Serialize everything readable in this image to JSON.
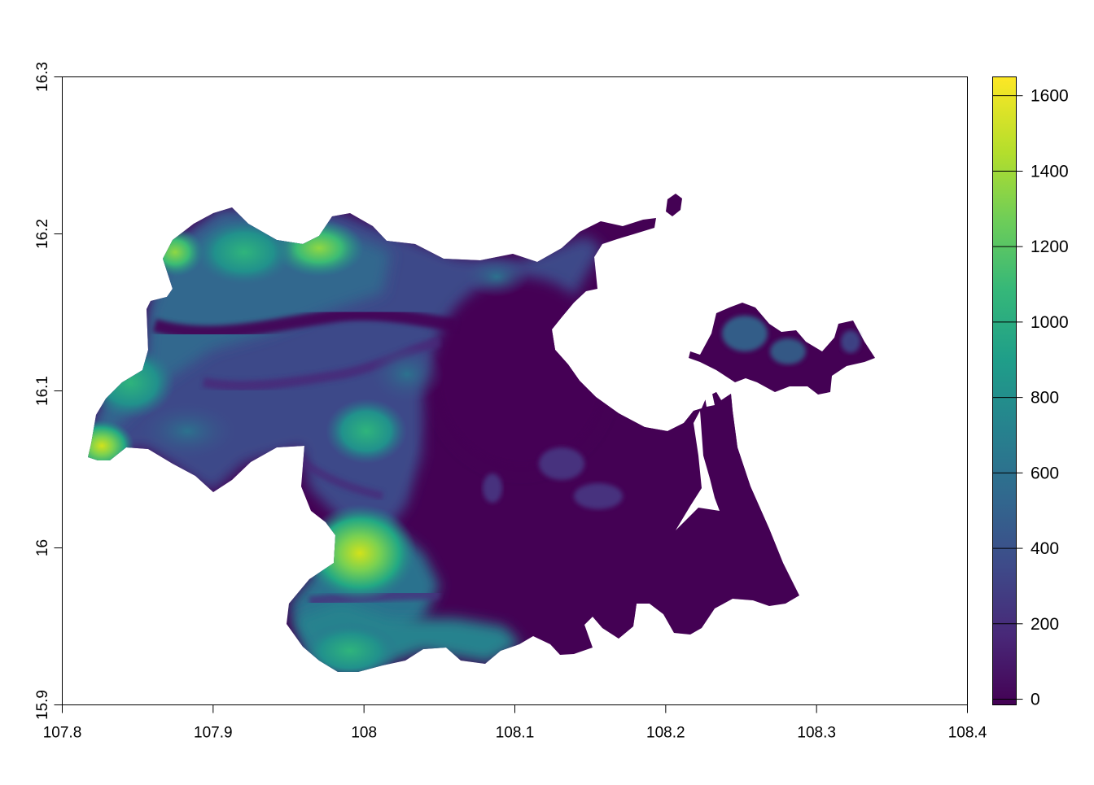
{
  "map": {
    "x_ticks": [
      "107.8",
      "107.9",
      "108",
      "108.1",
      "108.2",
      "108.3",
      "108.4"
    ],
    "y_ticks": [
      "15.9",
      "16",
      "16.1",
      "16.2",
      "16.3"
    ],
    "x_range": [
      107.8,
      108.4
    ],
    "y_range": [
      15.9,
      16.3
    ]
  },
  "legend": {
    "ticks": [
      "0",
      "200",
      "400",
      "600",
      "800",
      "1000",
      "1200",
      "1400",
      "1600"
    ],
    "min": -15,
    "max": 1650,
    "colors": [
      "#440154",
      "#482878",
      "#3E4A89",
      "#31688E",
      "#26828E",
      "#1F9E89",
      "#35B779",
      "#6DCD59",
      "#B4DE2C",
      "#FDE725"
    ]
  }
}
